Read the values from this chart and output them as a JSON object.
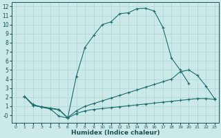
{
  "background_color": "#cce9e9",
  "grid_color": "#b0d8d8",
  "line_color": "#1a6b6b",
  "xlim": [
    -0.5,
    23.5
  ],
  "ylim": [
    -0.8,
    12.5
  ],
  "xticks": [
    0,
    1,
    2,
    3,
    4,
    5,
    6,
    7,
    8,
    9,
    10,
    11,
    12,
    13,
    14,
    15,
    16,
    17,
    18,
    19,
    20,
    21,
    22,
    23
  ],
  "yticks": [
    0,
    1,
    2,
    3,
    4,
    5,
    6,
    7,
    8,
    9,
    10,
    11,
    12
  ],
  "ytick_labels": [
    "-0",
    "1",
    "2",
    "3",
    "4",
    "5",
    "6",
    "7",
    "8",
    "9",
    "10",
    "11",
    "12"
  ],
  "xlabel": "Humidex (Indice chaleur)",
  "line1_x": [
    1,
    2,
    3,
    4,
    5,
    6,
    7,
    8,
    9,
    10,
    11,
    12,
    13,
    14,
    15,
    16,
    17,
    18,
    19,
    20
  ],
  "line1_y": [
    2.1,
    1.2,
    0.9,
    0.7,
    -0.1,
    -0.3,
    4.3,
    7.5,
    8.8,
    10.0,
    10.3,
    11.2,
    11.3,
    11.75,
    11.8,
    11.5,
    9.7,
    6.3,
    5.0,
    3.5
  ],
  "line2_x": [
    1,
    2,
    3,
    4,
    5,
    6,
    7,
    8,
    9,
    10,
    11,
    12,
    13,
    14,
    15,
    16,
    17,
    18,
    19,
    20,
    21,
    22,
    23
  ],
  "line2_y": [
    2.1,
    1.1,
    0.95,
    0.8,
    0.65,
    -0.25,
    0.5,
    1.0,
    1.3,
    1.6,
    1.9,
    2.2,
    2.5,
    2.8,
    3.1,
    3.4,
    3.7,
    4.0,
    4.8,
    5.0,
    4.4,
    3.2,
    1.8
  ],
  "line3_x": [
    1,
    2,
    3,
    4,
    5,
    6,
    7,
    8,
    9,
    10,
    11,
    12,
    13,
    14,
    15,
    16,
    17,
    18,
    19,
    20,
    21,
    22,
    23
  ],
  "line3_y": [
    2.1,
    1.1,
    0.9,
    0.75,
    0.6,
    -0.3,
    0.2,
    0.5,
    0.65,
    0.75,
    0.85,
    0.95,
    1.05,
    1.15,
    1.25,
    1.35,
    1.45,
    1.55,
    1.65,
    1.75,
    1.85,
    1.85,
    1.75
  ]
}
